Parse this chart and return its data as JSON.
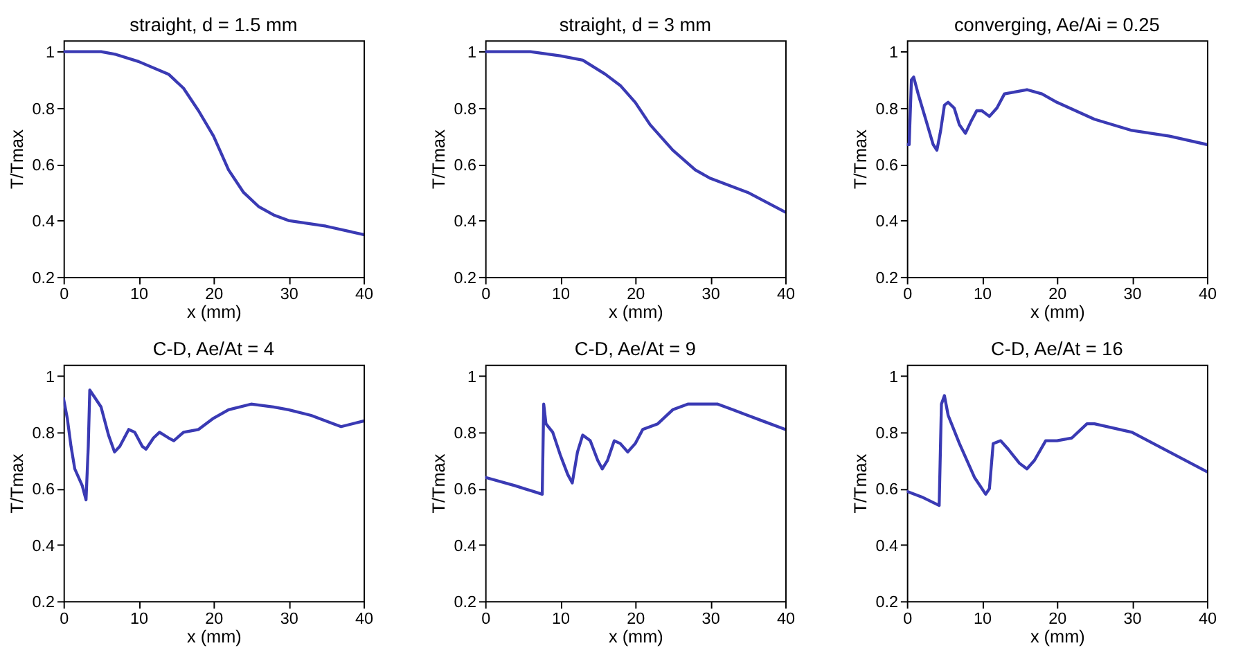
{
  "chart_data": [
    {
      "type": "line",
      "title": "straight, d = 1.5 mm",
      "xlabel": "x (mm)",
      "ylabel": "T/Tmax",
      "color": "#3a3ab4",
      "xlim": [
        0,
        40
      ],
      "ylim": [
        0.2,
        1.04
      ],
      "xticks": [
        0,
        10,
        20,
        30,
        40
      ],
      "yticks": [
        0.2,
        0.4,
        0.6,
        0.8,
        1
      ],
      "grid": false,
      "line_style": "solid",
      "x": [
        0,
        5,
        7,
        10,
        14,
        16,
        18,
        20,
        22,
        24,
        26,
        28,
        30,
        35,
        40
      ],
      "values": [
        1.0,
        1.0,
        0.99,
        0.965,
        0.92,
        0.87,
        0.79,
        0.7,
        0.58,
        0.5,
        0.45,
        0.42,
        0.4,
        0.38,
        0.35
      ]
    },
    {
      "type": "line",
      "title": "straight, d = 3 mm",
      "xlabel": "x (mm)",
      "ylabel": "T/Tmax",
      "color": "#3a3ab4",
      "xlim": [
        0,
        40
      ],
      "ylim": [
        0.2,
        1.04
      ],
      "xticks": [
        0,
        10,
        20,
        30,
        40
      ],
      "yticks": [
        0.2,
        0.4,
        0.6,
        0.8,
        1
      ],
      "grid": false,
      "line_style": "solid",
      "x": [
        0,
        6,
        10,
        13,
        16,
        18,
        20,
        22,
        25,
        28,
        30,
        35,
        40
      ],
      "values": [
        1.0,
        1.0,
        0.985,
        0.97,
        0.92,
        0.88,
        0.82,
        0.74,
        0.65,
        0.58,
        0.55,
        0.5,
        0.43
      ]
    },
    {
      "type": "line",
      "title": "converging, Ae/Ai = 0.25",
      "xlabel": "x (mm)",
      "ylabel": "T/Tmax",
      "color": "#3a3ab4",
      "xlim": [
        0,
        40
      ],
      "ylim": [
        0.2,
        1.04
      ],
      "xticks": [
        0,
        10,
        20,
        30,
        40
      ],
      "yticks": [
        0.2,
        0.4,
        0.6,
        0.8,
        1
      ],
      "grid": false,
      "line_style": "solid",
      "x": [
        0,
        0.3,
        0.6,
        0.9,
        1.5,
        2.5,
        3.5,
        4,
        4.5,
        5,
        5.5,
        6.3,
        7,
        7.8,
        8.5,
        9.3,
        10,
        11,
        12,
        13,
        15,
        16,
        18,
        20,
        25,
        30,
        35,
        40
      ],
      "values": [
        0.67,
        0.67,
        0.9,
        0.91,
        0.85,
        0.76,
        0.67,
        0.65,
        0.72,
        0.81,
        0.82,
        0.8,
        0.74,
        0.71,
        0.75,
        0.79,
        0.79,
        0.77,
        0.8,
        0.85,
        0.86,
        0.865,
        0.85,
        0.82,
        0.76,
        0.72,
        0.7,
        0.67
      ]
    },
    {
      "type": "line",
      "title": "C-D, Ae/At = 4",
      "xlabel": "x (mm)",
      "ylabel": "T/Tmax",
      "color": "#3a3ab4",
      "xlim": [
        0,
        40
      ],
      "ylim": [
        0.2,
        1.04
      ],
      "xticks": [
        0,
        10,
        20,
        30,
        40
      ],
      "yticks": [
        0.2,
        0.4,
        0.6,
        0.8,
        1
      ],
      "grid": false,
      "line_style": "solid",
      "x": [
        0,
        0.5,
        1,
        1.5,
        2.5,
        3,
        3.3,
        3.5,
        4,
        5,
        6,
        6.8,
        7.5,
        8.7,
        9.5,
        10.5,
        11,
        12,
        12.8,
        14,
        14.7,
        16,
        18,
        20,
        22,
        25,
        28,
        30,
        33,
        36,
        37,
        40
      ],
      "values": [
        0.92,
        0.85,
        0.75,
        0.67,
        0.61,
        0.56,
        0.75,
        0.95,
        0.93,
        0.89,
        0.79,
        0.73,
        0.75,
        0.81,
        0.8,
        0.75,
        0.74,
        0.78,
        0.8,
        0.78,
        0.77,
        0.8,
        0.81,
        0.85,
        0.88,
        0.9,
        0.89,
        0.88,
        0.86,
        0.83,
        0.82,
        0.84
      ]
    },
    {
      "type": "line",
      "title": "C-D, Ae/At = 9",
      "xlabel": "x (mm)",
      "ylabel": "T/Tmax",
      "color": "#3a3ab4",
      "xlim": [
        0,
        40
      ],
      "ylim": [
        0.2,
        1.04
      ],
      "xticks": [
        0,
        10,
        20,
        30,
        40
      ],
      "yticks": [
        0.2,
        0.4,
        0.6,
        0.8,
        1
      ],
      "grid": false,
      "line_style": "solid",
      "x": [
        0,
        4,
        7.6,
        7.8,
        8.1,
        9,
        10,
        11,
        11.6,
        12.3,
        13,
        14,
        15,
        15.6,
        16.3,
        17.2,
        18,
        19,
        20,
        21,
        23,
        25,
        27,
        31,
        33,
        35,
        37,
        40
      ],
      "values": [
        0.64,
        0.61,
        0.58,
        0.9,
        0.83,
        0.8,
        0.72,
        0.65,
        0.62,
        0.73,
        0.79,
        0.77,
        0.7,
        0.67,
        0.7,
        0.77,
        0.76,
        0.73,
        0.76,
        0.81,
        0.83,
        0.88,
        0.9,
        0.9,
        0.88,
        0.86,
        0.84,
        0.81
      ]
    },
    {
      "type": "line",
      "title": "C-D, Ae/At = 16",
      "xlabel": "x (mm)",
      "ylabel": "T/Tmax",
      "color": "#3a3ab4",
      "xlim": [
        0,
        40
      ],
      "ylim": [
        0.2,
        1.04
      ],
      "xticks": [
        0,
        10,
        20,
        30,
        40
      ],
      "yticks": [
        0.2,
        0.4,
        0.6,
        0.8,
        1
      ],
      "grid": false,
      "line_style": "solid",
      "x": [
        0,
        2,
        4.3,
        4.6,
        5,
        5.5,
        7,
        9,
        10.5,
        11,
        11.5,
        12.5,
        13.5,
        15,
        16,
        17,
        18.5,
        20,
        22,
        24,
        25,
        30,
        35,
        40
      ],
      "values": [
        0.59,
        0.57,
        0.54,
        0.9,
        0.93,
        0.86,
        0.76,
        0.64,
        0.58,
        0.6,
        0.76,
        0.77,
        0.74,
        0.69,
        0.67,
        0.7,
        0.77,
        0.77,
        0.78,
        0.83,
        0.83,
        0.8,
        0.73,
        0.66
      ]
    }
  ]
}
